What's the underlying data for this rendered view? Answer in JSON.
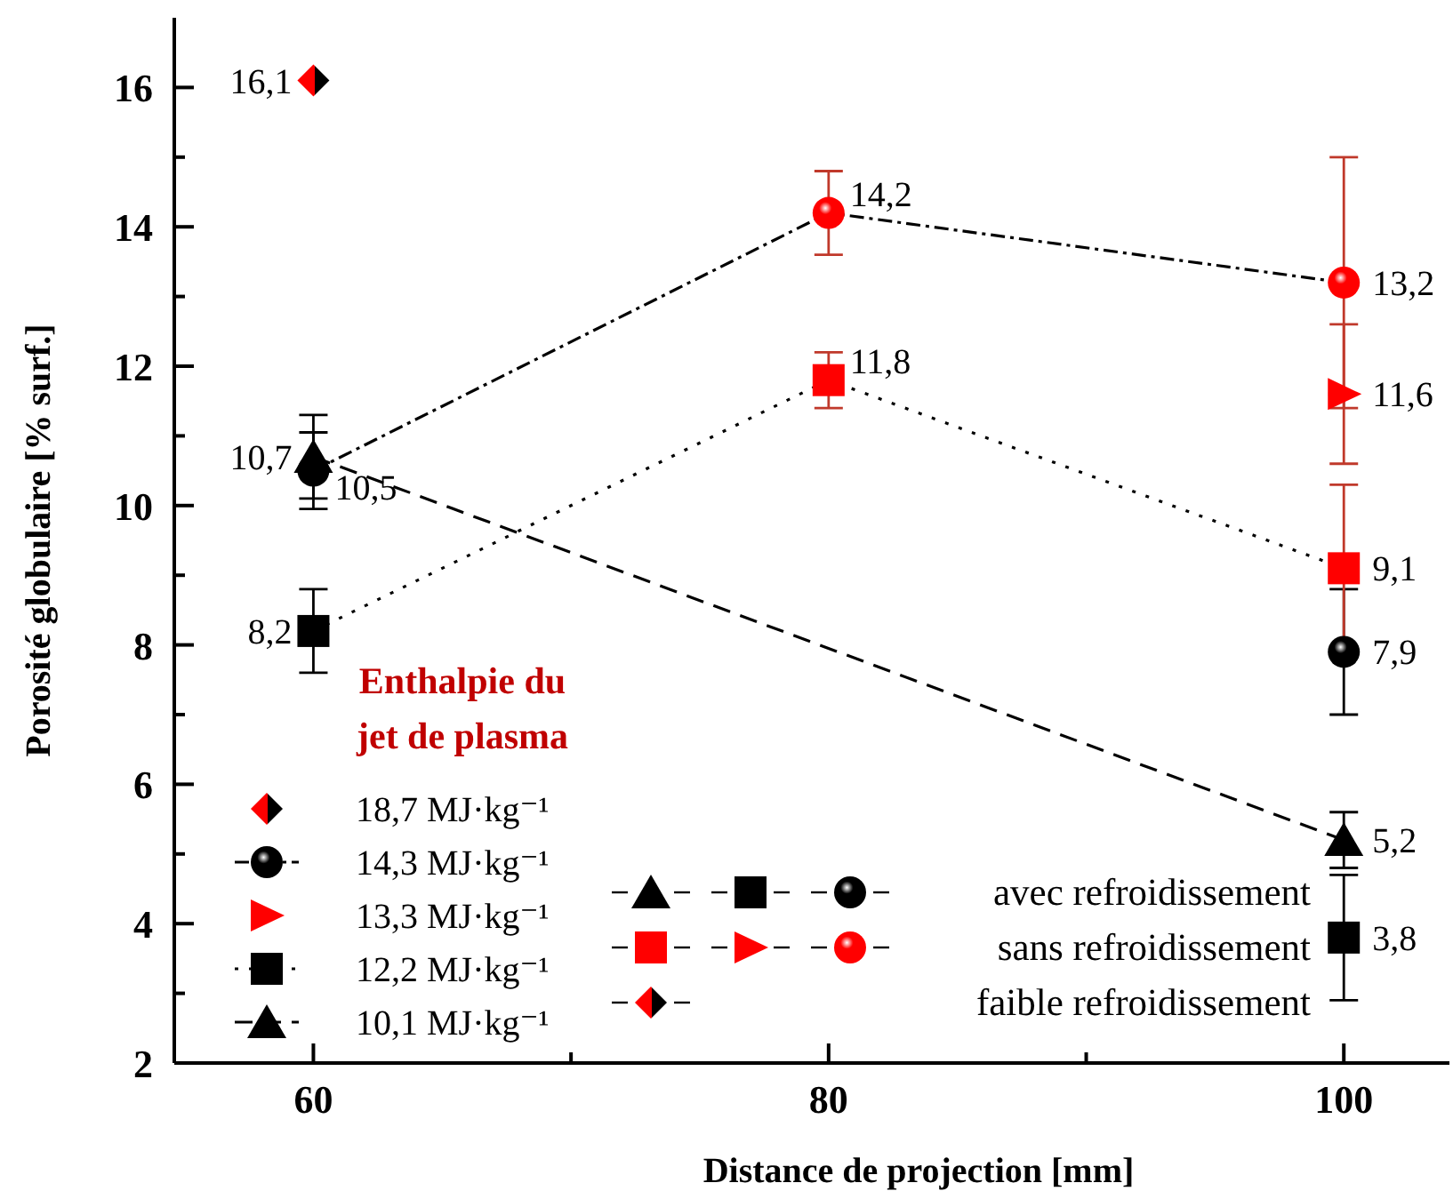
{
  "chart_data": {
    "type": "line",
    "xlabel": "Distance de projection [mm]",
    "ylabel": "Porosité globulaire [% surf.]",
    "legend_title": "Enthalpie du jet de plasma",
    "legend": "bottom left",
    "xlim": [
      54.6,
      104.1
    ],
    "ylim": [
      2,
      17
    ],
    "xticks": [
      60,
      {
        "value": 70,
        "label": null
      },
      80,
      {
        "value": 90,
        "label": null
      },
      100
    ],
    "yticks": [
      2,
      {
        "value": 3,
        "label": null
      },
      4,
      {
        "value": 5,
        "label": null
      },
      6,
      {
        "value": 7,
        "label": null
      },
      8,
      {
        "value": 9,
        "label": null
      },
      10,
      {
        "value": 11,
        "label": null
      },
      12,
      {
        "value": 13,
        "label": null
      },
      14,
      {
        "value": 15,
        "label": null
      },
      16
    ],
    "series": [
      {
        "name": "18,7 MJ·kg⁻¹",
        "type": "scatter",
        "marker": "diamond",
        "color": "#ff0000",
        "x": [
          60
        ],
        "values": [
          16.1
        ],
        "value_labels": [
          "16,1"
        ]
      },
      {
        "name": "14,3 MJ·kg⁻¹",
        "line_style": "dashdot",
        "marker": "circle",
        "color": "#000000",
        "colors": [
          "#000000",
          "#ff0000",
          "#ff0000"
        ],
        "x": [
          60,
          80,
          100
        ],
        "values": [
          10.5,
          14.2,
          13.2
        ],
        "errors": [
          0.55,
          0.6,
          1.8
        ],
        "value_labels": [
          "10,5",
          "14,2",
          "13,2"
        ]
      },
      {
        "type": "scatter",
        "marker": "circle",
        "color": "#000000",
        "x": [
          100
        ],
        "values": [
          7.9
        ],
        "errors": [
          0.9
        ],
        "value_labels": [
          "7,9"
        ]
      },
      {
        "name": "13,3 MJ·kg⁻¹",
        "type": "scatter",
        "marker": "triangle-right",
        "color": "#ff0000",
        "x": [
          100
        ],
        "values": [
          11.6
        ],
        "errors": [
          1.0
        ],
        "value_labels": [
          "11,6"
        ]
      },
      {
        "name": "12,2 MJ·kg⁻¹",
        "line_style": "dotted",
        "marker": "square",
        "color": "#000000",
        "colors": [
          "#000000",
          "#ff0000",
          "#ff0000"
        ],
        "x": [
          60,
          80,
          100
        ],
        "values": [
          8.2,
          11.8,
          9.1
        ],
        "errors": [
          0.6,
          0.4,
          1.2
        ],
        "value_labels": [
          "8,2",
          "11,8",
          "9,1"
        ]
      },
      {
        "type": "scatter",
        "marker": "square",
        "color": "#000000",
        "x": [
          100
        ],
        "values": [
          3.8
        ],
        "errors": [
          0.9
        ],
        "value_labels": [
          "3,8"
        ]
      },
      {
        "name": "10,1 MJ·kg⁻¹",
        "line_style": "dashed",
        "marker": "triangle",
        "color": "#000000",
        "x": [
          60,
          100
        ],
        "values": [
          10.7,
          5.2
        ],
        "errors": [
          0.6,
          0.4
        ],
        "value_labels": [
          "10,7",
          "5,2"
        ]
      }
    ],
    "annotations": [
      "avec refroidissement",
      "sans refroidissement",
      "faible refroidissement"
    ]
  }
}
